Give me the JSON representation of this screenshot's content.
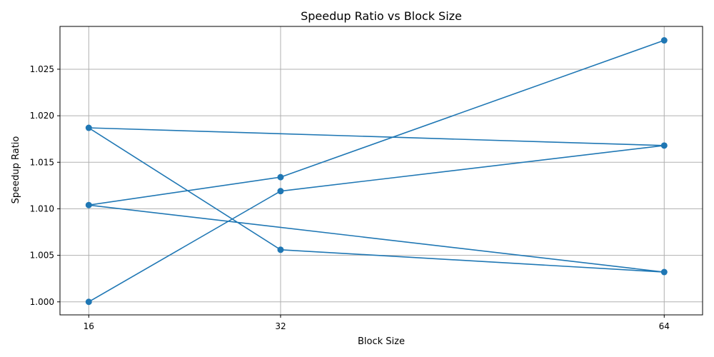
{
  "chart_data": {
    "type": "line",
    "title": "Speedup Ratio vs Block Size",
    "xlabel": "Block Size",
    "ylabel": "Speedup Ratio",
    "x_ticks": [
      16,
      32,
      64
    ],
    "x_tick_labels": [
      "16",
      "32",
      "64"
    ],
    "y_ticks": [
      1.0,
      1.005,
      1.01,
      1.015,
      1.02,
      1.025
    ],
    "y_tick_labels": [
      "1.000",
      "1.005",
      "1.010",
      "1.015",
      "1.020",
      "1.025"
    ],
    "xlim": [
      13.6,
      67.2
    ],
    "ylim": [
      0.9986,
      1.0296
    ],
    "grid": true,
    "marker": "circle",
    "series": [
      {
        "color": "#1f77b4",
        "points": [
          {
            "x": 16,
            "y": 1.0
          },
          {
            "x": 32,
            "y": 1.0119
          },
          {
            "x": 64,
            "y": 1.0168
          },
          {
            "x": 16,
            "y": 1.0187
          },
          {
            "x": 32,
            "y": 1.0056
          },
          {
            "x": 64,
            "y": 1.0032
          },
          {
            "x": 16,
            "y": 1.0104
          },
          {
            "x": 32,
            "y": 1.0134
          },
          {
            "x": 64,
            "y": 1.0281
          }
        ]
      }
    ]
  }
}
